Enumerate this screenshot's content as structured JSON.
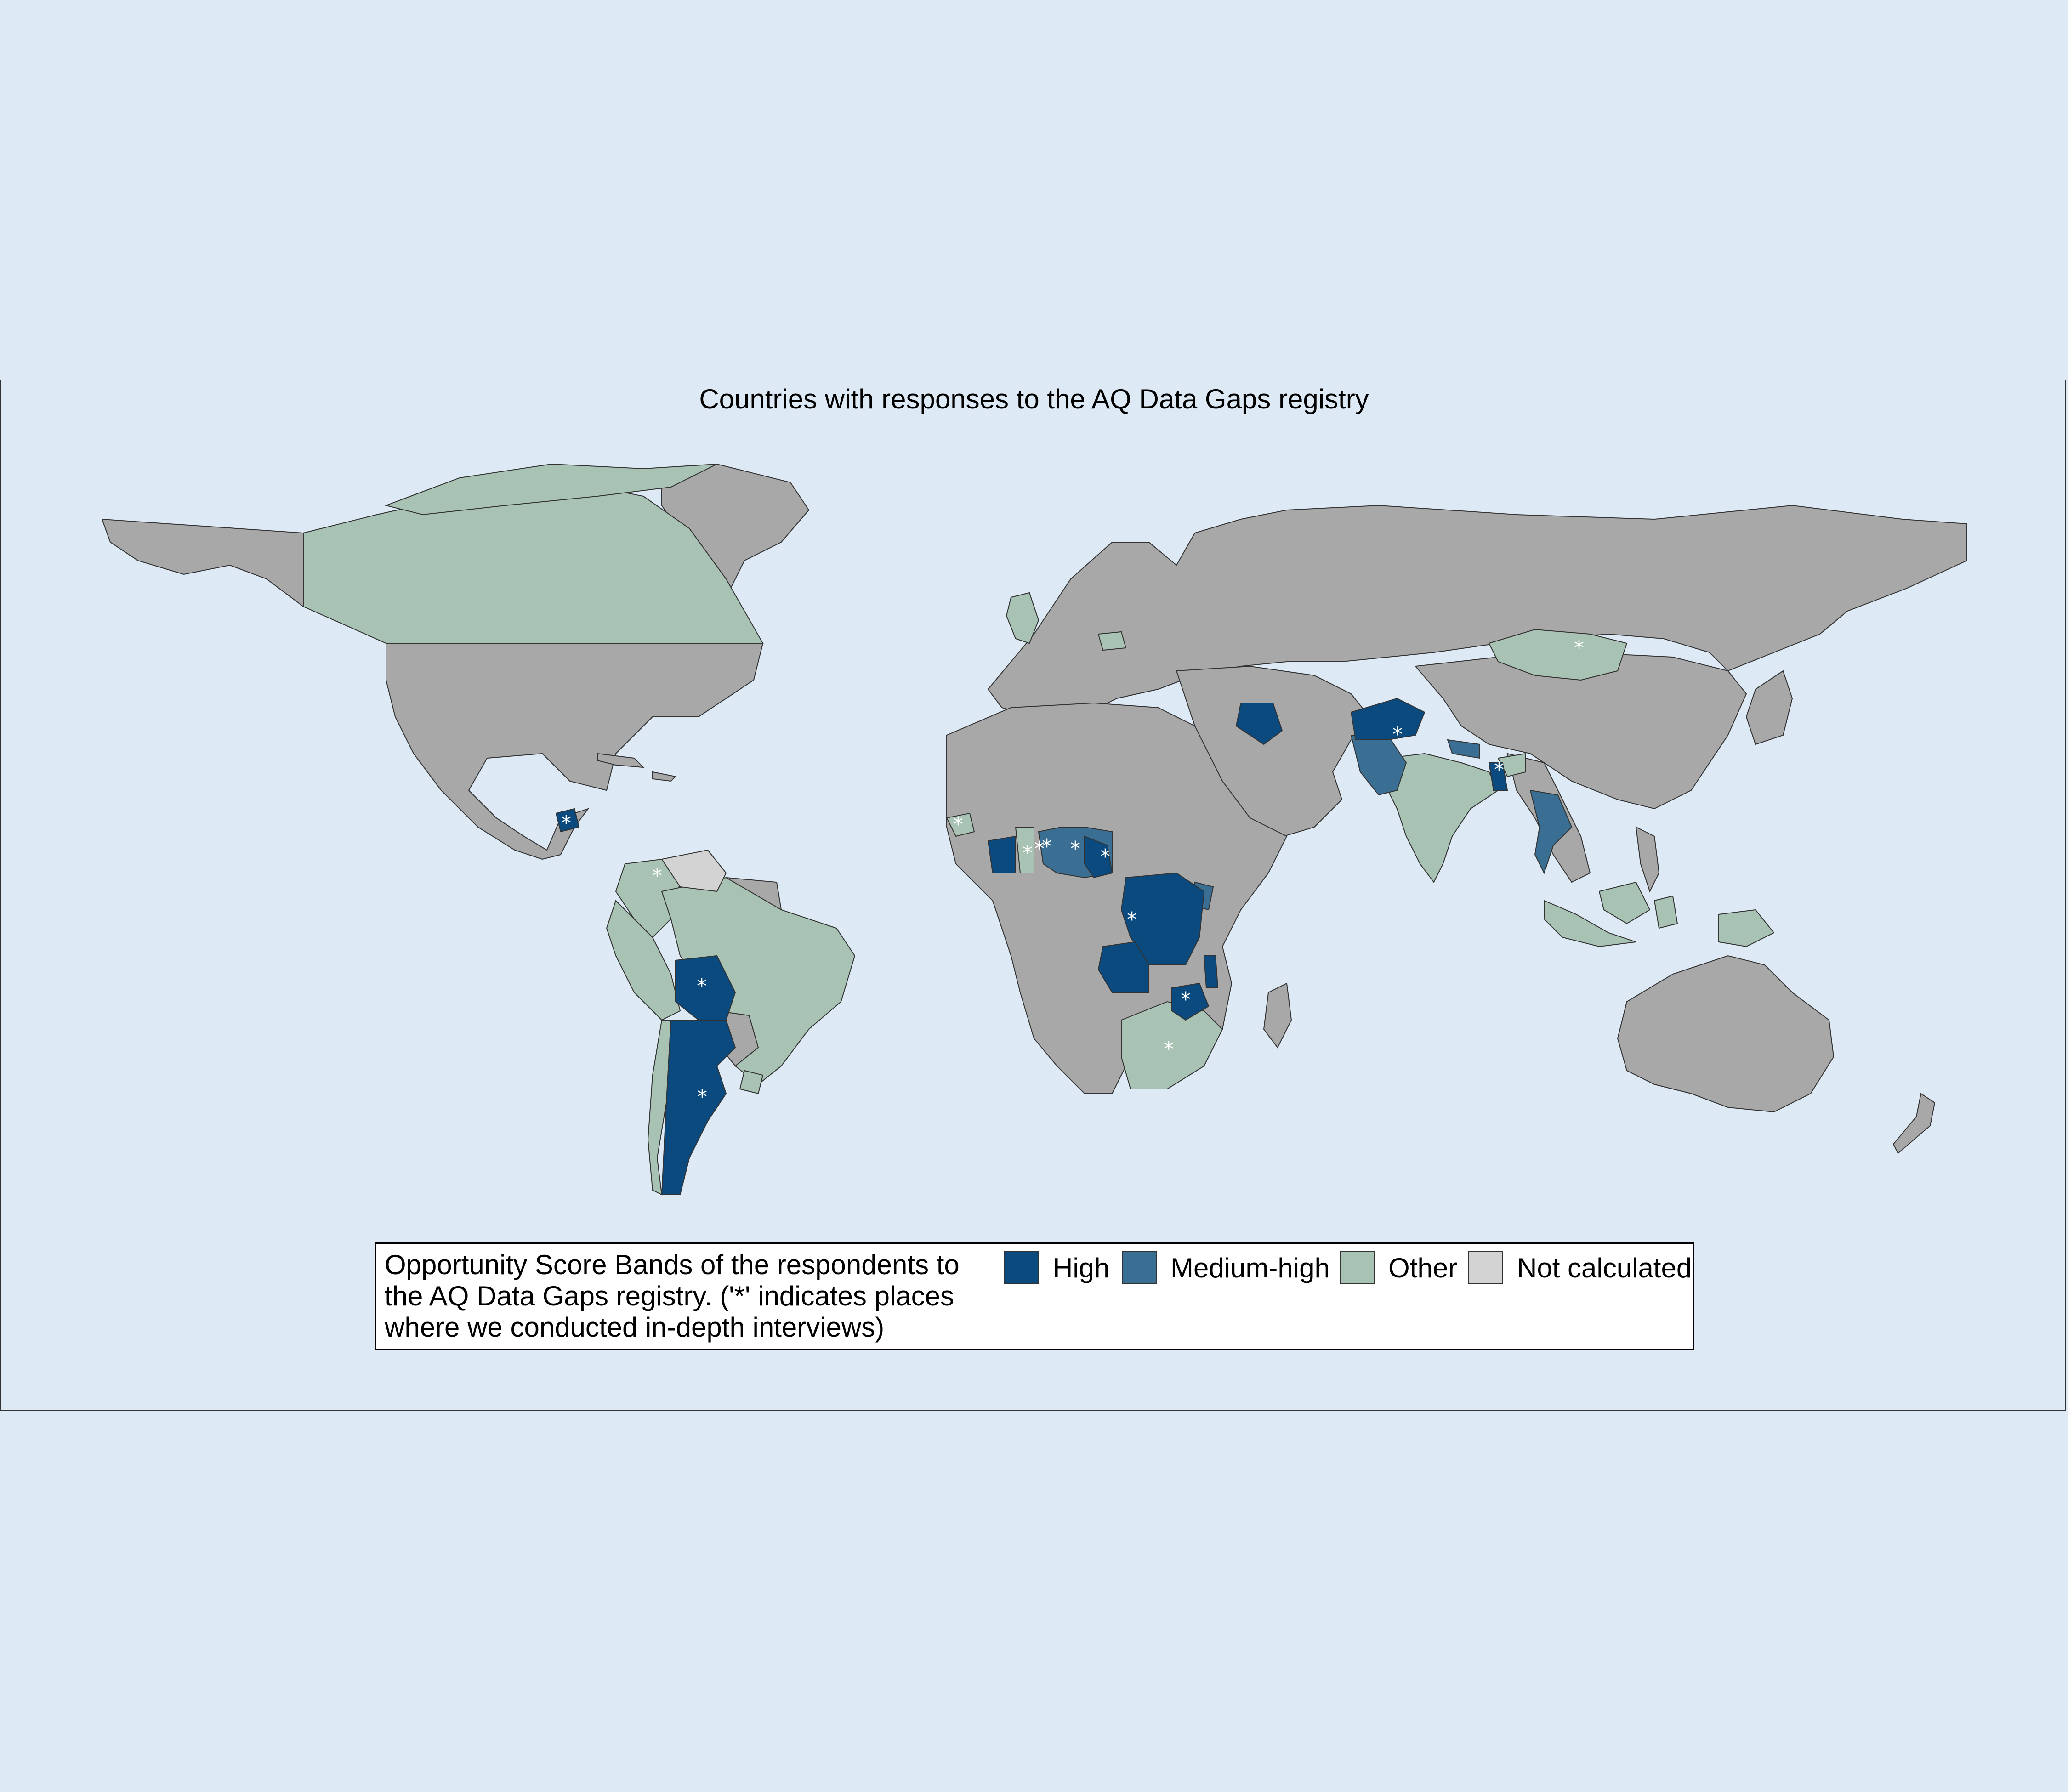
{
  "title": "Countries with responses to the AQ Data Gaps registry",
  "legend": {
    "title": "Opportunity Score Bands of the respondents to\nthe AQ Data Gaps registry. ('*' indicates places\nwhere we conducted in-depth interviews)",
    "items": [
      {
        "label": "High",
        "color": "#0b4a7e"
      },
      {
        "label": "Medium-high",
        "color": "#3a6f93"
      },
      {
        "label": "Other",
        "color": "#a8c2b4"
      },
      {
        "label": "Not calculated",
        "color": "#d3d3d3"
      }
    ]
  },
  "colors": {
    "ocean": "#dde9f5",
    "land_no_response": "#a8a8a8",
    "border": "#333333",
    "interview_marker": "#ffffff"
  },
  "interview_marker": "*",
  "map_data": {
    "high": [
      "Guatemala",
      "Bolivia",
      "Argentina",
      "Côte d'Ivoire",
      "Cameroon",
      "Democratic Republic of the Congo",
      "Angola",
      "Zimbabwe",
      "Malawi",
      "Iraq",
      "Afghanistan",
      "Bangladesh"
    ],
    "medium_high": [
      "Togo",
      "Benin",
      "Nigeria",
      "Uganda",
      "Pakistan",
      "Nepal",
      "Thailand"
    ],
    "other": [
      "Canada",
      "Colombia",
      "Peru",
      "Brazil",
      "Chile",
      "Uruguay",
      "Ghana",
      "Senegal",
      "South Africa",
      "Mongolia",
      "India",
      "Bhutan",
      "Malaysia",
      "Indonesia",
      "Papua New Guinea",
      "Poland",
      "United Kingdom"
    ],
    "not_calculated": [
      "Venezuela"
    ],
    "interviews": [
      "Guatemala",
      "Colombia",
      "Bolivia",
      "Argentina",
      "Senegal",
      "Ghana",
      "Togo",
      "Benin",
      "Nigeria",
      "Cameroon",
      "Democratic Republic of the Congo",
      "Zimbabwe",
      "South Africa",
      "Afghanistan",
      "Bangladesh",
      "Mongolia"
    ]
  }
}
